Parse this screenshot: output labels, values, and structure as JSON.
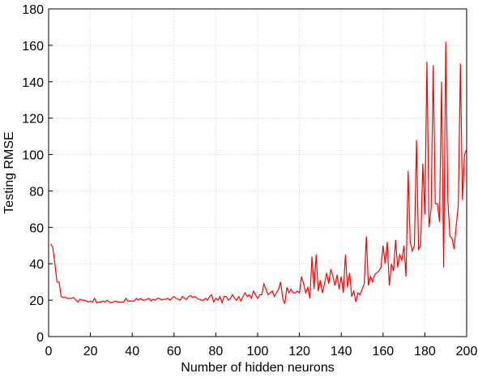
{
  "chart_data": {
    "type": "line",
    "xlabel": "Number of hidden neurons",
    "ylabel": "Testing RMSE",
    "xlim": [
      0,
      200
    ],
    "ylim": [
      0,
      180
    ],
    "xticks": [
      0,
      20,
      40,
      60,
      80,
      100,
      120,
      140,
      160,
      180,
      200
    ],
    "yticks": [
      0,
      20,
      40,
      60,
      80,
      100,
      120,
      140,
      160,
      180
    ],
    "grid": true,
    "x": [
      1,
      2,
      3,
      4,
      5,
      6,
      7,
      8,
      9,
      10,
      11,
      12,
      13,
      14,
      15,
      16,
      17,
      18,
      19,
      20,
      21,
      22,
      23,
      24,
      25,
      26,
      27,
      28,
      29,
      30,
      31,
      32,
      33,
      34,
      35,
      36,
      37,
      38,
      39,
      40,
      41,
      42,
      43,
      44,
      45,
      46,
      47,
      48,
      49,
      50,
      51,
      52,
      53,
      54,
      55,
      56,
      57,
      58,
      59,
      60,
      61,
      62,
      63,
      64,
      65,
      66,
      67,
      68,
      69,
      70,
      71,
      72,
      73,
      74,
      75,
      76,
      77,
      78,
      79,
      80,
      81,
      82,
      83,
      84,
      85,
      86,
      87,
      88,
      89,
      90,
      91,
      92,
      93,
      94,
      95,
      96,
      97,
      98,
      99,
      100,
      101,
      102,
      103,
      104,
      105,
      106,
      107,
      108,
      109,
      110,
      111,
      112,
      113,
      114,
      115,
      116,
      117,
      118,
      119,
      120,
      121,
      122,
      123,
      124,
      125,
      126,
      127,
      128,
      129,
      130,
      131,
      132,
      133,
      134,
      135,
      136,
      137,
      138,
      139,
      140,
      141,
      142,
      143,
      144,
      145,
      146,
      147,
      148,
      149,
      150,
      151,
      152,
      153,
      154,
      155,
      156,
      157,
      158,
      159,
      160,
      161,
      162,
      163,
      164,
      165,
      166,
      167,
      168,
      169,
      170,
      171,
      172,
      173,
      174,
      175,
      176,
      177,
      178,
      179,
      180,
      181,
      182,
      183,
      184,
      185,
      186,
      187,
      188,
      189,
      190,
      191,
      192,
      193,
      194,
      195,
      196,
      197,
      198,
      199,
      200
    ],
    "series": [
      {
        "color": "#ff0000",
        "values": [
          51,
          49,
          40,
          30,
          30,
          22,
          21.5,
          21.5,
          21,
          21,
          21,
          21.5,
          20,
          19,
          20.5,
          20,
          20,
          19.5,
          19,
          19.5,
          19,
          21,
          18.5,
          19,
          19,
          19.5,
          19,
          20,
          19,
          18.5,
          19,
          19.5,
          19,
          19,
          19,
          19,
          21,
          19.5,
          19.5,
          19.5,
          19.5,
          21,
          20,
          21,
          20,
          20,
          20.5,
          21,
          19.5,
          20.5,
          20,
          21,
          21,
          20,
          20.5,
          20.5,
          21,
          20,
          21,
          22,
          21,
          20.5,
          20,
          22,
          21,
          20.5,
          22,
          22.5,
          21.5,
          22,
          21,
          20.5,
          20,
          20,
          21,
          20,
          22,
          23,
          19,
          21,
          20,
          22,
          18.5,
          22,
          22,
          20,
          21,
          23,
          21,
          20,
          22,
          19.5,
          22,
          24,
          22,
          23,
          21,
          25,
          23,
          21,
          23,
          23,
          29,
          26,
          23,
          24,
          25,
          22,
          24,
          26,
          30,
          21,
          18,
          27,
          24,
          26,
          24,
          24,
          25,
          24,
          33,
          29,
          24,
          27,
          21,
          44,
          26,
          45,
          25,
          31,
          24,
          29,
          35,
          29,
          37,
          33,
          28,
          34,
          26,
          33,
          24,
          45,
          27,
          35,
          22,
          25,
          19,
          24,
          23,
          26,
          29,
          55,
          28,
          33,
          30,
          34,
          35,
          36,
          38,
          50,
          40,
          52,
          28,
          40,
          36,
          53,
          38,
          45,
          42,
          50,
          33,
          91,
          52,
          47,
          50,
          108,
          48,
          50,
          95,
          67,
          151,
          60,
          70,
          149,
          73,
          73,
          63,
          140,
          38,
          162,
          75,
          55,
          54,
          48,
          61,
          72,
          150,
          75,
          100,
          103
        ]
      }
    ]
  }
}
